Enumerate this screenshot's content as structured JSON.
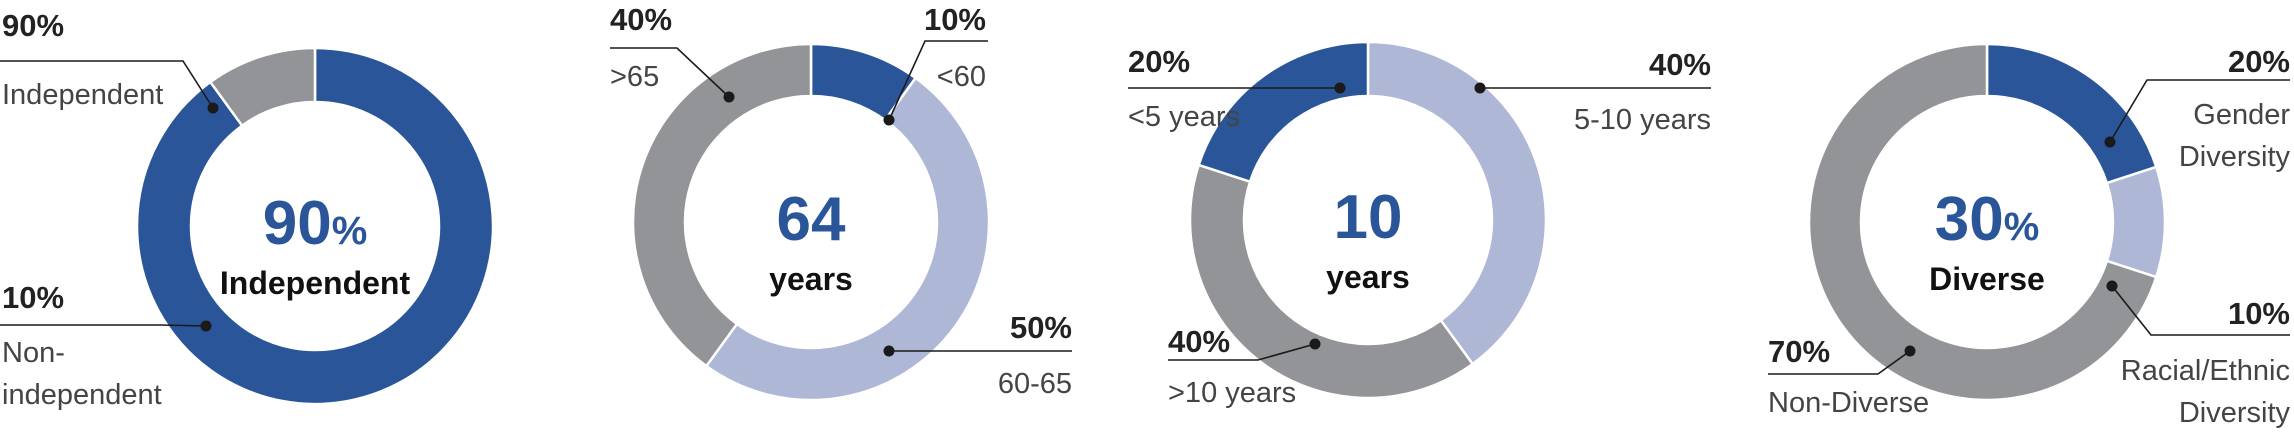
{
  "colors": {
    "dark_blue": "#2a5699",
    "light_blue": "#aeb7d6",
    "gray": "#929497",
    "text": "#222222",
    "label": "#444444",
    "center_number": "#2a5699"
  },
  "chart_data": [
    {
      "type": "pie",
      "donut": true,
      "center": {
        "value": "90",
        "unit": "%",
        "label": "Independent"
      },
      "slices": [
        {
          "name": "Independent",
          "pct_label": "90%",
          "value": 90,
          "color": "#2a5699",
          "label_lines": [
            "Independent"
          ]
        },
        {
          "name": "Non-independent",
          "pct_label": "10%",
          "value": 10,
          "color": "#929497",
          "label_lines": [
            "Non-",
            "independent"
          ]
        }
      ]
    },
    {
      "type": "pie",
      "donut": true,
      "center": {
        "value": "64",
        "unit": "",
        "label": "years"
      },
      "slices": [
        {
          "name": "<60",
          "pct_label": "10%",
          "value": 10,
          "color": "#2a5699",
          "label_lines": [
            "<60"
          ]
        },
        {
          "name": "60-65",
          "pct_label": "50%",
          "value": 50,
          "color": "#aeb7d6",
          "label_lines": [
            "60-65"
          ]
        },
        {
          "name": ">65",
          "pct_label": "40%",
          "value": 40,
          "color": "#929497",
          "label_lines": [
            ">65"
          ]
        }
      ]
    },
    {
      "type": "pie",
      "donut": true,
      "center": {
        "value": "10",
        "unit": "",
        "label": "years"
      },
      "slices": [
        {
          "name": "5-10 years",
          "pct_label": "40%",
          "value": 40,
          "color": "#aeb7d6",
          "label_lines": [
            "5-10 years"
          ]
        },
        {
          "name": ">10 years",
          "pct_label": "40%",
          "value": 40,
          "color": "#929497",
          "label_lines": [
            ">10 years"
          ]
        },
        {
          "name": "<5 years",
          "pct_label": "20%",
          "value": 20,
          "color": "#2a5699",
          "label_lines": [
            "<5 years"
          ]
        }
      ]
    },
    {
      "type": "pie",
      "donut": true,
      "center": {
        "value": "30",
        "unit": "%",
        "label": "Diverse"
      },
      "slices": [
        {
          "name": "Gender Diversity",
          "pct_label": "20%",
          "value": 20,
          "color": "#2a5699",
          "label_lines": [
            "Gender",
            "Diversity"
          ]
        },
        {
          "name": "Racial/Ethnic Diversity",
          "pct_label": "10%",
          "value": 10,
          "color": "#aeb7d6",
          "label_lines": [
            "Racial/Ethnic",
            "Diversity"
          ]
        },
        {
          "name": "Non-Diverse",
          "pct_label": "70%",
          "value": 70,
          "color": "#929497",
          "label_lines": [
            "Non-Diverse"
          ]
        }
      ]
    }
  ]
}
